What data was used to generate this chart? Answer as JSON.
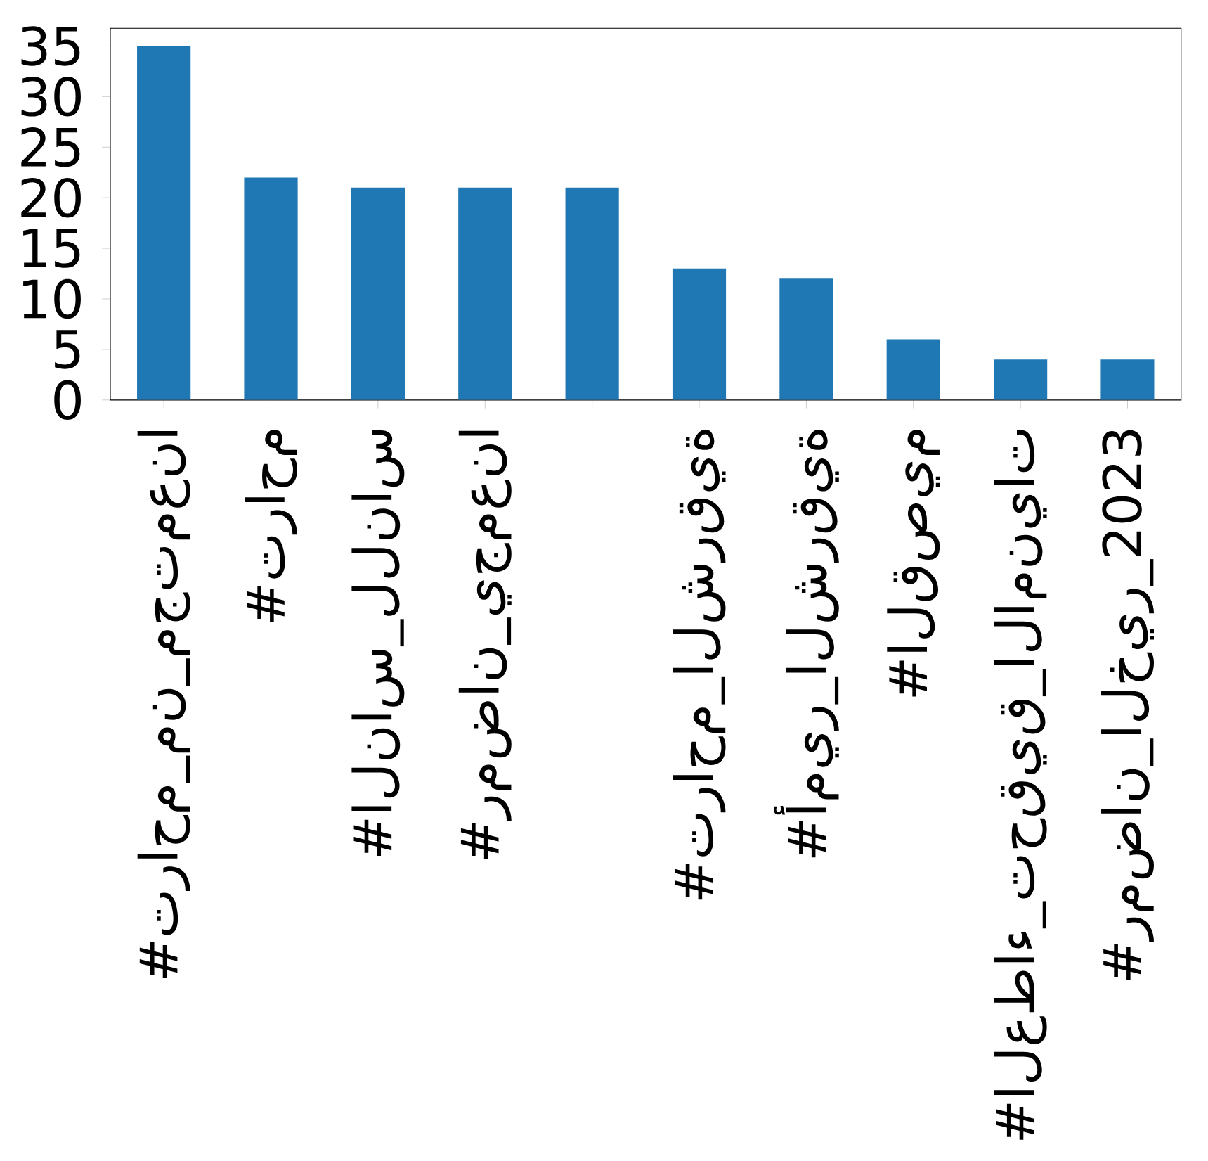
{
  "chart_data": {
    "type": "bar",
    "categories": [
      "#تراحم_من_مجتمعنا",
      "#تراحم",
      "#الناس_للناس",
      "#رمضان_يجمعنا",
      null,
      "#تراحم_الشرقية",
      "#أمير_الشرقية",
      "#القصيم",
      "#العطاء_تحقيق_الامنيات",
      "#رمضان_الخير_2023"
    ],
    "values": [
      35,
      22,
      21,
      21,
      21,
      13,
      12,
      6,
      4,
      4
    ],
    "color": "#1f77b4",
    "ylim": [
      0,
      36.75
    ],
    "yticks": [
      0,
      5,
      10,
      15,
      20,
      25,
      30,
      35
    ],
    "grid": false
  }
}
